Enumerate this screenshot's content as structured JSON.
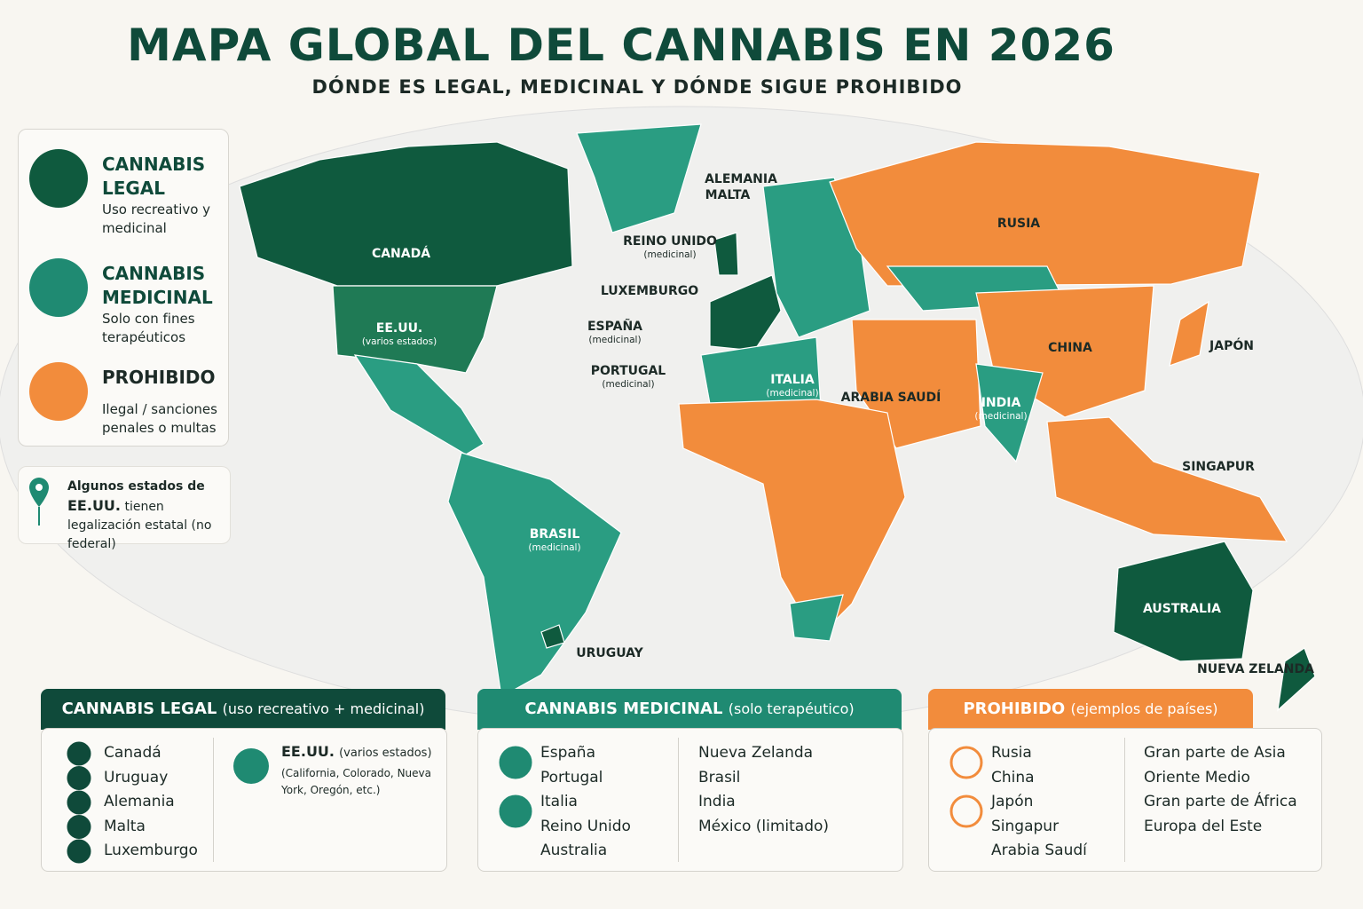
{
  "header": {
    "title": "MAPA GLOBAL DEL CANNABIS EN 2026",
    "subtitle": "DÓNDE ES LEGAL, MEDICINAL Y DÓNDE SIGUE PROHIBIDO"
  },
  "legend": [
    {
      "title": "CANNABIS LEGAL",
      "description": "Uso recreativo y medicinal"
    },
    {
      "title": "CANNABIS MEDICINAL",
      "description": "Solo con fines terapéuticos"
    },
    {
      "title": "PROHIBIDO",
      "description": "Ilegal / sanciones penales o multas"
    }
  ],
  "note": {
    "lead": "Algunos estados de",
    "country": "EE.UU.",
    "text": "tienen legalización estatal (no federal)"
  },
  "map_labels": [
    {
      "label": "CANADÁ"
    },
    {
      "label": "EE.UU.",
      "sublabel": "(varios estados)"
    },
    {
      "label": "BRASIL",
      "sublabel": "(medicinal)"
    },
    {
      "label": "URUGUAY"
    },
    {
      "label": "ALEMANIA"
    },
    {
      "label": "MALTA"
    },
    {
      "label": "REINO UNIDO",
      "sublabel": "(medicinal)"
    },
    {
      "label": "LUXEMBURGO"
    },
    {
      "label": "ESPAÑA",
      "sublabel": "(medicinal)"
    },
    {
      "label": "PORTUGAL",
      "sublabel": "(medicinal)"
    },
    {
      "label": "ITALIA",
      "sublabel": "(medicinal)"
    },
    {
      "label": "RUSIA"
    },
    {
      "label": "CHINA"
    },
    {
      "label": "JAPÓN"
    },
    {
      "label": "ARABIA SAUDÍ"
    },
    {
      "label": "INDIA",
      "sublabel": "(medicinal)"
    },
    {
      "label": "SINGAPUR"
    },
    {
      "label": "AUSTRALIA"
    },
    {
      "label": "NUEVA ZELANDA"
    }
  ],
  "panels": [
    {
      "title": "CANNABIS LEGAL",
      "subtitle": "(uso recreativo + medicinal)",
      "columns": [
        [
          "Canadá",
          "Uruguay",
          "Alemania",
          "Malta",
          "Luxemburgo"
        ]
      ],
      "extra": {
        "title": "EE.UU.",
        "subtitle": "(varios estados)",
        "detail": "(California, Colorado, Nueva York, Oregón, etc.)"
      }
    },
    {
      "title": "CANNABIS MEDICINAL",
      "subtitle": "(solo terapéutico)",
      "columns": [
        [
          "España",
          "Portugal",
          "Italia",
          "Reino Unido",
          "Australia"
        ],
        [
          "Nueva Zelanda",
          "Brasil",
          "India",
          "México (limitado)"
        ]
      ]
    },
    {
      "title": "PROHIBIDO",
      "subtitle": "(ejemplos de países)",
      "columns": [
        [
          "Rusia",
          "China",
          "Japón",
          "Singapur",
          "Arabia Saudí"
        ],
        [
          "Gran parte de Asia",
          "Oriente Medio",
          "Gran parte de África",
          "Europa del Este"
        ]
      ]
    }
  ]
}
